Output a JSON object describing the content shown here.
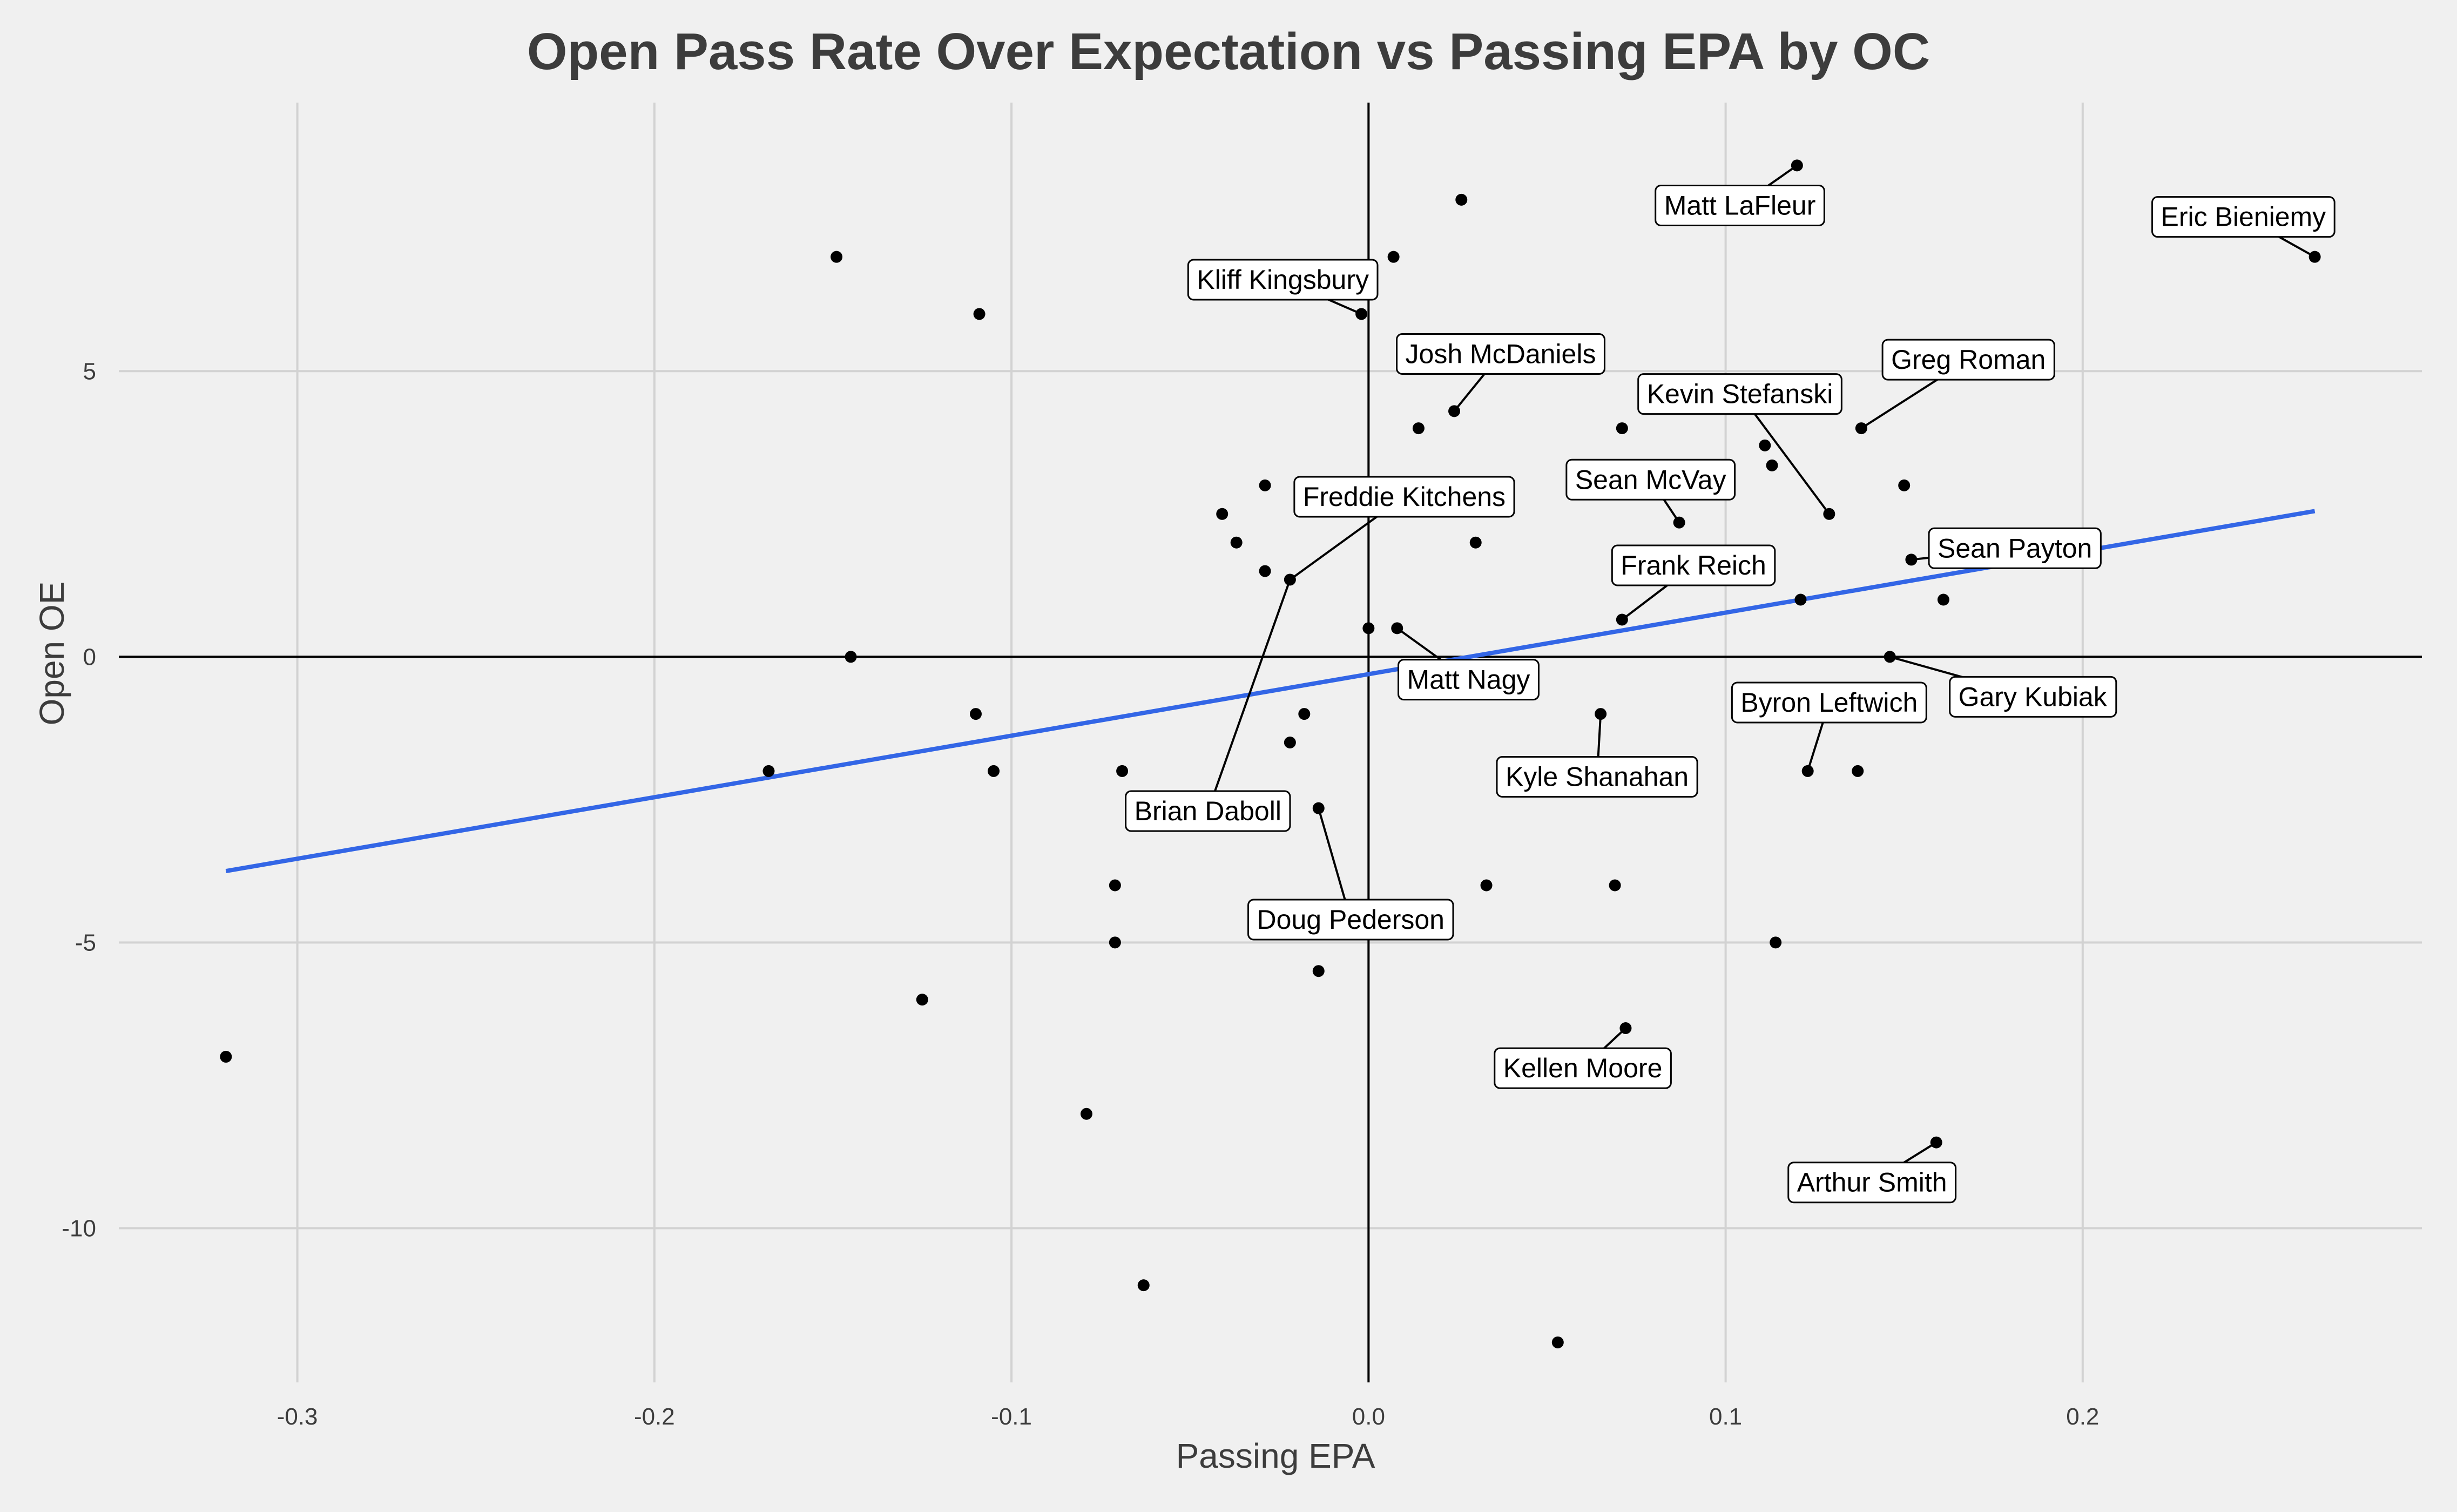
{
  "chart_data": {
    "type": "scatter",
    "title": "Open Pass Rate Over Expectation vs Passing EPA by OC",
    "xlabel": "Passing EPA",
    "ylabel": "Open OE",
    "xlim": [
      -0.35,
      0.295
    ],
    "ylim": [
      -12.7,
      9.7
    ],
    "x_ticks": [
      -0.3,
      -0.2,
      -0.1,
      0.0,
      0.1,
      0.2
    ],
    "y_ticks": [
      -10,
      -5,
      0,
      5
    ],
    "x_tick_labels": [
      "-0.3",
      "-0.2",
      "-0.1",
      "0.0",
      "0.1",
      "0.2"
    ],
    "y_tick_labels": [
      "-10",
      "-5",
      "0",
      "5"
    ],
    "grid": true,
    "reference_lines": {
      "x": 0,
      "y": 0
    },
    "trend_line": {
      "color": "#3366e6",
      "points": [
        [
          -0.32,
          -3.75
        ],
        [
          0.265,
          2.55
        ]
      ]
    },
    "point_color": "#000000",
    "points": [
      {
        "x": -0.32,
        "y": -7.0
      },
      {
        "x": -0.168,
        "y": -2.0
      },
      {
        "x": -0.149,
        "y": 7.0
      },
      {
        "x": -0.145,
        "y": 0.0
      },
      {
        "x": -0.125,
        "y": -6.0
      },
      {
        "x": -0.11,
        "y": -1.0
      },
      {
        "x": -0.109,
        "y": 6.0
      },
      {
        "x": -0.105,
        "y": -2.0
      },
      {
        "x": -0.079,
        "y": -8.0
      },
      {
        "x": -0.071,
        "y": -4.0
      },
      {
        "x": -0.071,
        "y": -5.0
      },
      {
        "x": -0.069,
        "y": -2.0
      },
      {
        "x": -0.063,
        "y": -11.0
      },
      {
        "x": -0.041,
        "y": 2.5
      },
      {
        "x": -0.037,
        "y": 2.0
      },
      {
        "x": -0.029,
        "y": 3.0
      },
      {
        "x": -0.029,
        "y": 1.5
      },
      {
        "x": -0.022,
        "y": 1.35
      },
      {
        "x": -0.022,
        "y": -1.5
      },
      {
        "x": -0.018,
        "y": -1.0
      },
      {
        "x": -0.014,
        "y": -2.65
      },
      {
        "x": -0.014,
        "y": -5.5
      },
      {
        "x": -0.002,
        "y": 6.0
      },
      {
        "x": 0.0,
        "y": 0.5
      },
      {
        "x": 0.007,
        "y": 7.0
      },
      {
        "x": 0.008,
        "y": 0.5
      },
      {
        "x": 0.014,
        "y": 4.0
      },
      {
        "x": 0.024,
        "y": 4.3
      },
      {
        "x": 0.026,
        "y": 8.0
      },
      {
        "x": 0.03,
        "y": 2.0
      },
      {
        "x": 0.033,
        "y": -4.0
      },
      {
        "x": 0.053,
        "y": -12.0
      },
      {
        "x": 0.065,
        "y": -1.0
      },
      {
        "x": 0.069,
        "y": -4.0
      },
      {
        "x": 0.071,
        "y": 0.65
      },
      {
        "x": 0.071,
        "y": 4.0
      },
      {
        "x": 0.072,
        "y": -6.5
      },
      {
        "x": 0.087,
        "y": 2.35
      },
      {
        "x": 0.111,
        "y": 3.7
      },
      {
        "x": 0.113,
        "y": 3.35
      },
      {
        "x": 0.114,
        "y": -5.0
      },
      {
        "x": 0.12,
        "y": 8.6
      },
      {
        "x": 0.121,
        "y": 1.0
      },
      {
        "x": 0.123,
        "y": -2.0
      },
      {
        "x": 0.129,
        "y": 2.5
      },
      {
        "x": 0.137,
        "y": -2.0
      },
      {
        "x": 0.138,
        "y": 4.0
      },
      {
        "x": 0.146,
        "y": 0.0
      },
      {
        "x": 0.15,
        "y": 3.0
      },
      {
        "x": 0.152,
        "y": 1.7
      },
      {
        "x": 0.159,
        "y": -8.5
      },
      {
        "x": 0.161,
        "y": 1.0
      },
      {
        "x": 0.265,
        "y": 7.0
      }
    ],
    "annotations": [
      {
        "text": "Matt LaFleur",
        "x": 0.12,
        "y": 8.6,
        "lx": 0.104,
        "ly": 7.9
      },
      {
        "text": "Eric Bieniemy",
        "x": 0.265,
        "y": 7.0,
        "lx": 0.245,
        "ly": 7.7
      },
      {
        "text": "Kliff Kingsbury",
        "x": -0.002,
        "y": 6.0,
        "lx": -0.024,
        "ly": 6.6
      },
      {
        "text": "Josh McDaniels",
        "x": 0.024,
        "y": 4.3,
        "lx": 0.037,
        "ly": 5.3
      },
      {
        "text": "Greg Roman",
        "x": 0.138,
        "y": 4.0,
        "lx": 0.168,
        "ly": 5.2
      },
      {
        "text": "Kevin Stefanski",
        "x": 0.129,
        "y": 2.5,
        "lx": 0.104,
        "ly": 4.6
      },
      {
        "text": "Sean McVay",
        "x": 0.087,
        "y": 2.35,
        "lx": 0.079,
        "ly": 3.1
      },
      {
        "text": "Freddie Kitchens",
        "x": -0.022,
        "y": 1.35,
        "lx": 0.01,
        "ly": 2.8
      },
      {
        "text": "Frank Reich",
        "x": 0.071,
        "y": 0.65,
        "lx": 0.091,
        "ly": 1.6
      },
      {
        "text": "Sean Payton",
        "x": 0.152,
        "y": 1.7,
        "lx": 0.181,
        "ly": 1.9
      },
      {
        "text": "Matt Nagy",
        "x": 0.008,
        "y": 0.5,
        "lx": 0.028,
        "ly": -0.4
      },
      {
        "text": "Gary Kubiak",
        "x": 0.146,
        "y": 0.0,
        "lx": 0.186,
        "ly": -0.7
      },
      {
        "text": "Byron Leftwich",
        "x": 0.123,
        "y": -2.0,
        "lx": 0.129,
        "ly": -0.8
      },
      {
        "text": "Kyle Shanahan",
        "x": 0.065,
        "y": -1.0,
        "lx": 0.064,
        "ly": -2.1
      },
      {
        "text": "Brian Daboll",
        "x": -0.022,
        "y": 1.35,
        "lx": -0.045,
        "ly": -2.7
      },
      {
        "text": "Doug Pederson",
        "x": -0.014,
        "y": -2.65,
        "lx": -0.005,
        "ly": -4.6
      },
      {
        "text": "Kellen Moore",
        "x": 0.072,
        "y": -6.5,
        "lx": 0.06,
        "ly": -7.2
      },
      {
        "text": "Arthur Smith",
        "x": 0.159,
        "y": -8.5,
        "lx": 0.141,
        "ly": -9.2
      }
    ]
  }
}
